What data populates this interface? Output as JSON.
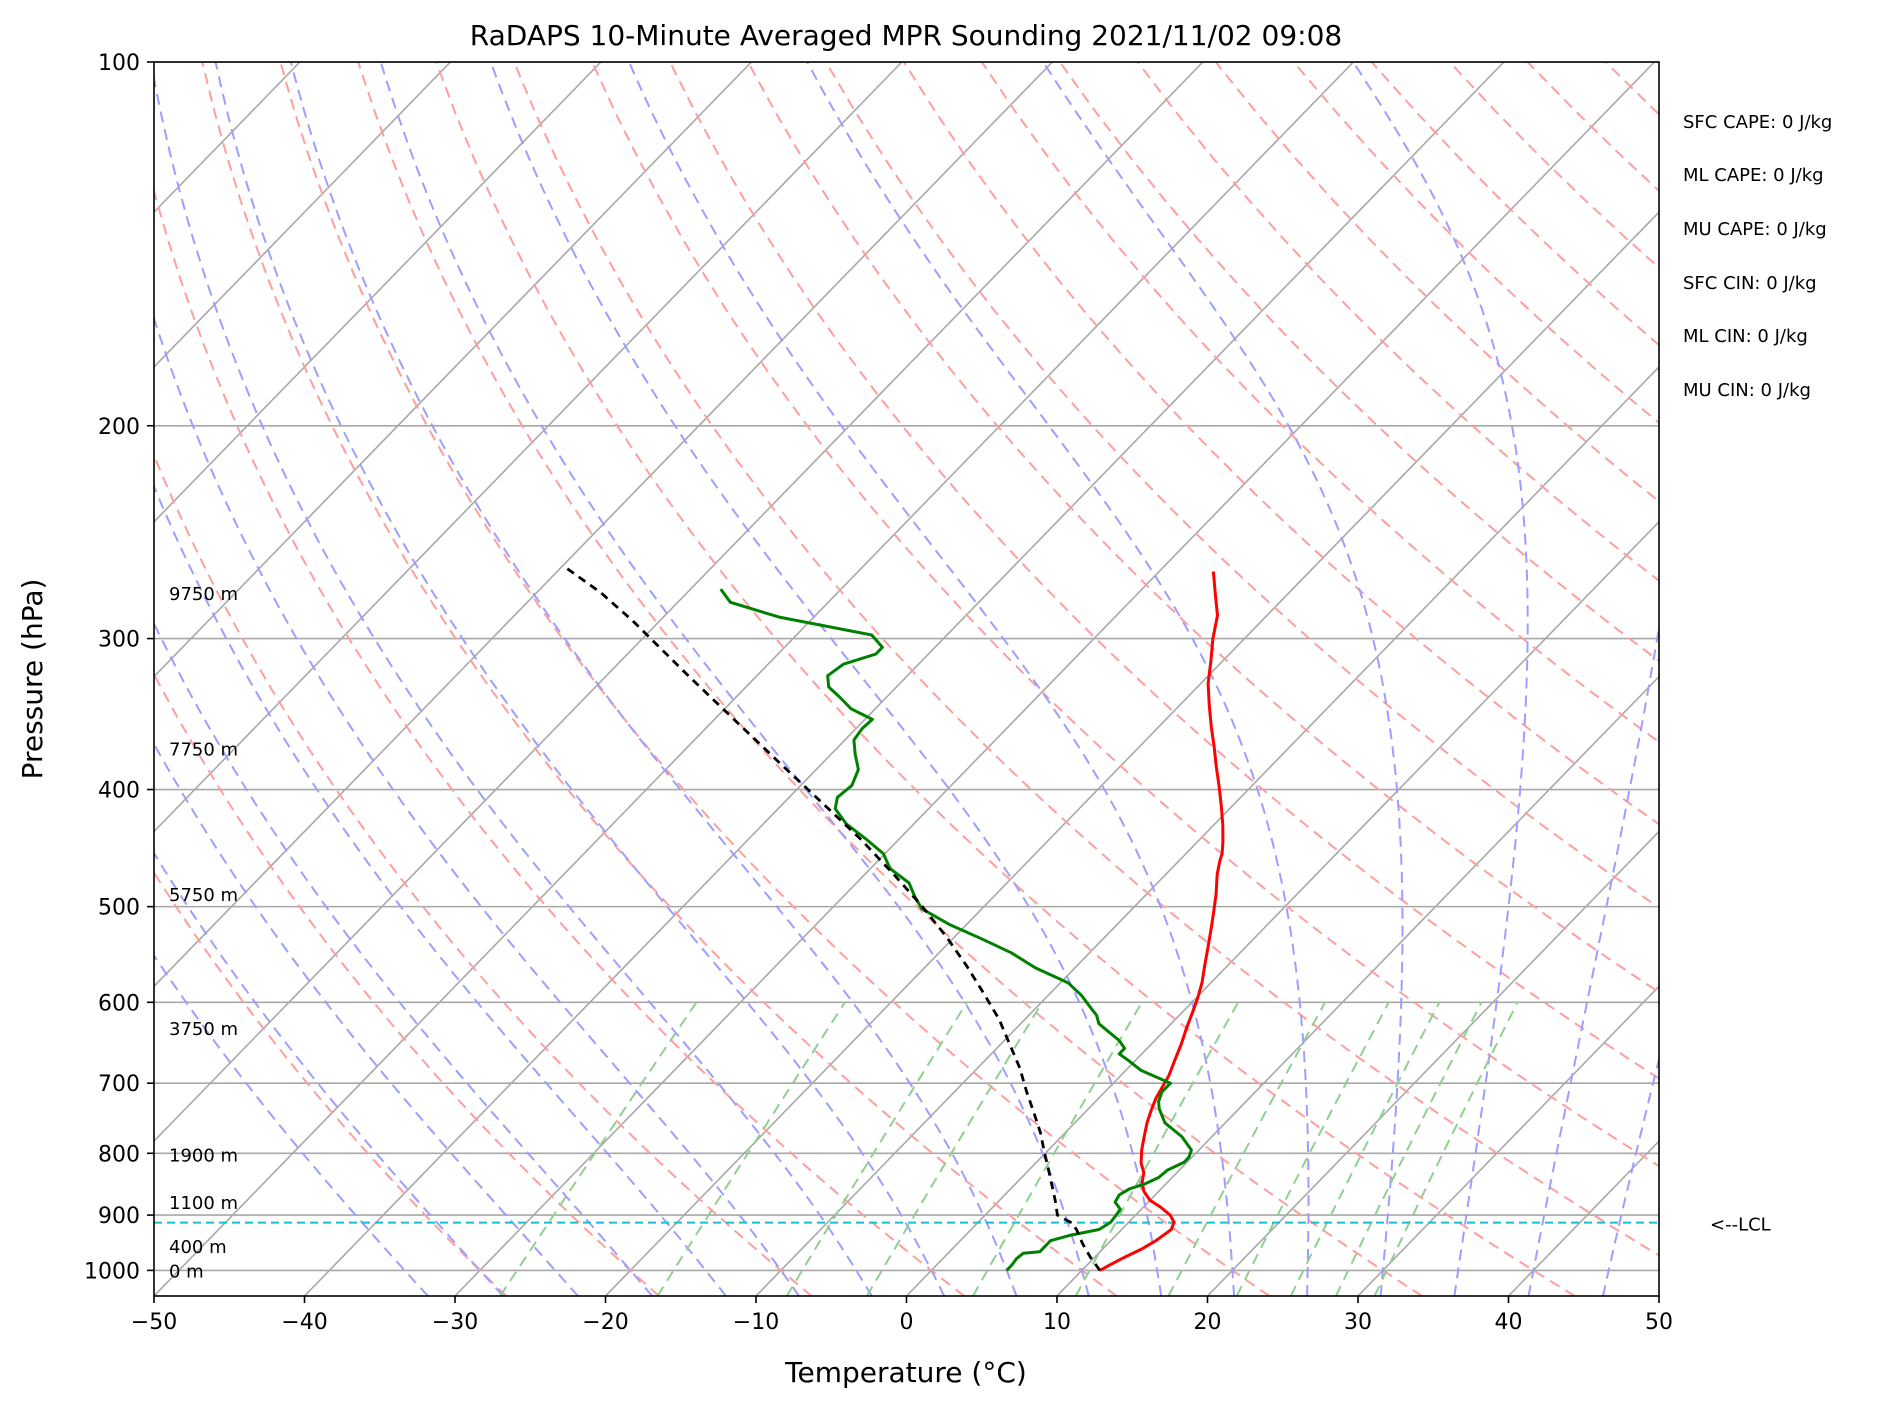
{
  "chart_data": {
    "type": "skew-t log-p",
    "title": "RaDAPS 10-Minute Averaged MPR Sounding 2021/11/02 09:08",
    "xlabel": "Temperature (°C)",
    "ylabel": "Pressure (hPa)",
    "xlim": [
      -50,
      50
    ],
    "ylim": [
      1050,
      100
    ],
    "x_ticks": [
      -50,
      -40,
      -30,
      -20,
      -10,
      0,
      10,
      20,
      30,
      40,
      50
    ],
    "x_tick_labels": [
      "−50",
      "−40",
      "−30",
      "−20",
      "−10",
      "0",
      "10",
      "20",
      "30",
      "40",
      "50"
    ],
    "y_ticks": [
      1000,
      900,
      800,
      700,
      600,
      500,
      400,
      300,
      200,
      100
    ],
    "y_tick_labels": [
      "1000",
      "900",
      "800",
      "700",
      "600",
      "500",
      "400",
      "300",
      "200",
      "100"
    ],
    "grid": true,
    "height_labels": [
      {
        "label": "0 m",
        "p": 1000
      },
      {
        "label": "400 m",
        "p": 955
      },
      {
        "label": "1100 m",
        "p": 878
      },
      {
        "label": "1900 m",
        "p": 802
      },
      {
        "label": "3750 m",
        "p": 630
      },
      {
        "label": "5750 m",
        "p": 488
      },
      {
        "label": "7750 m",
        "p": 370
      },
      {
        "label": "9750 m",
        "p": 275
      }
    ],
    "lcl": {
      "label": "<--LCL",
      "p": 913,
      "color": "#17becf"
    },
    "series": [
      {
        "role": "temperature",
        "color": "#ff0000",
        "points": [
          [
            11.2,
            1000
          ],
          [
            11.5,
            990
          ],
          [
            12.0,
            975
          ],
          [
            12.6,
            960
          ],
          [
            13.0,
            945
          ],
          [
            13.3,
            925
          ],
          [
            13.0,
            912
          ],
          [
            12.3,
            900
          ],
          [
            11.2,
            887
          ],
          [
            10.0,
            875
          ],
          [
            9.0,
            860
          ],
          [
            8.3,
            845
          ],
          [
            7.8,
            830
          ],
          [
            7.0,
            815
          ],
          [
            6.2,
            795
          ],
          [
            5.5,
            775
          ],
          [
            4.8,
            755
          ],
          [
            4.2,
            735
          ],
          [
            3.8,
            720
          ],
          [
            3.5,
            705
          ],
          [
            3.2,
            690
          ],
          [
            2.6,
            670
          ],
          [
            2.0,
            650
          ],
          [
            1.3,
            630
          ],
          [
            0.7,
            612
          ],
          [
            0.1,
            595
          ],
          [
            -0.6,
            578
          ],
          [
            -1.5,
            560
          ],
          [
            -2.4,
            542
          ],
          [
            -3.4,
            523
          ],
          [
            -4.4,
            505
          ],
          [
            -5.4,
            488
          ],
          [
            -6.6,
            470
          ],
          [
            -7.3,
            458
          ],
          [
            -7.6,
            452
          ],
          [
            -8.3,
            442
          ],
          [
            -9.4,
            428
          ],
          [
            -10.8,
            412
          ],
          [
            -12.2,
            397
          ],
          [
            -13.6,
            383
          ],
          [
            -15.0,
            369
          ],
          [
            -16.5,
            355
          ],
          [
            -18.0,
            341
          ],
          [
            -19.5,
            327
          ],
          [
            -20.8,
            313
          ],
          [
            -22.1,
            300
          ],
          [
            -23.3,
            287
          ],
          [
            -24.9,
            275
          ],
          [
            -26.4,
            264
          ]
        ]
      },
      {
        "role": "dewpoint",
        "color": "#008000",
        "points": [
          [
            5.0,
            1000
          ],
          [
            5.0,
            990
          ],
          [
            4.9,
            978
          ],
          [
            5.0,
            968
          ],
          [
            6.0,
            965
          ],
          [
            6.0,
            955
          ],
          [
            6.0,
            945
          ],
          [
            7.0,
            935
          ],
          [
            8.5,
            925
          ],
          [
            8.8,
            912
          ],
          [
            8.7,
            900
          ],
          [
            8.6,
            890
          ],
          [
            7.8,
            878
          ],
          [
            7.6,
            866
          ],
          [
            7.9,
            856
          ],
          [
            8.6,
            848
          ],
          [
            9.1,
            838
          ],
          [
            9.2,
            826
          ],
          [
            9.8,
            814
          ],
          [
            9.8,
            806
          ],
          [
            9.5,
            795
          ],
          [
            8.0,
            775
          ],
          [
            6.0,
            755
          ],
          [
            4.7,
            735
          ],
          [
            4.2,
            725
          ],
          [
            3.8,
            712
          ],
          [
            3.8,
            700
          ],
          [
            1.0,
            683
          ],
          [
            -0.5,
            670
          ],
          [
            -1.5,
            662
          ],
          [
            -1.5,
            655
          ],
          [
            -2.4,
            645
          ],
          [
            -3.6,
            635
          ],
          [
            -4.8,
            625
          ],
          [
            -5.5,
            615
          ],
          [
            -6.5,
            605
          ],
          [
            -7.8,
            592
          ],
          [
            -9.5,
            578
          ],
          [
            -12.6,
            562
          ],
          [
            -15.2,
            546
          ],
          [
            -18.0,
            532
          ],
          [
            -21.2,
            517
          ],
          [
            -24.0,
            502
          ],
          [
            -25.3,
            490
          ],
          [
            -26.5,
            478
          ],
          [
            -28.7,
            465
          ],
          [
            -30.1,
            452
          ],
          [
            -32.3,
            439
          ],
          [
            -34.5,
            427
          ],
          [
            -36.2,
            415
          ],
          [
            -36.8,
            406
          ],
          [
            -36.6,
            397
          ],
          [
            -37.2,
            385
          ],
          [
            -38.4,
            374
          ],
          [
            -39.4,
            364
          ],
          [
            -39.6,
            356
          ],
          [
            -39.5,
            350
          ],
          [
            -41.6,
            343
          ],
          [
            -43.0,
            336
          ],
          [
            -44.5,
            329
          ],
          [
            -45.3,
            322
          ],
          [
            -45.0,
            315
          ],
          [
            -43.5,
            309
          ],
          [
            -43.5,
            305
          ],
          [
            -45.0,
            298
          ],
          [
            -52.3,
            288
          ],
          [
            -56.5,
            280
          ],
          [
            -58.0,
            273
          ]
        ]
      },
      {
        "role": "parcel",
        "color": "#000000",
        "dashed": true,
        "points": [
          [
            11.2,
            1000
          ],
          [
            9.7,
            975
          ],
          [
            8.3,
            950
          ],
          [
            7.0,
            925
          ],
          [
            6.2,
            913
          ],
          [
            4.8,
            900
          ],
          [
            3.7,
            875
          ],
          [
            2.5,
            850
          ],
          [
            1.0,
            820
          ],
          [
            -0.3,
            795
          ],
          [
            -1.6,
            770
          ],
          [
            -3.4,
            740
          ],
          [
            -5.3,
            710
          ],
          [
            -7.2,
            680
          ],
          [
            -9.4,
            650
          ],
          [
            -11.7,
            620
          ],
          [
            -14.4,
            590
          ],
          [
            -17.3,
            560
          ],
          [
            -20.5,
            530
          ],
          [
            -24.1,
            500
          ],
          [
            -28.1,
            470
          ],
          [
            -32.5,
            440
          ],
          [
            -37.5,
            410
          ],
          [
            -42.9,
            380
          ],
          [
            -48.7,
            350
          ],
          [
            -55.0,
            320
          ],
          [
            -61.8,
            290
          ],
          [
            -65.7,
            275
          ],
          [
            -69.7,
            262
          ]
        ]
      }
    ]
  },
  "indices": [
    "SFC CAPE: 0 J/kg",
    "ML CAPE: 0 J/kg",
    "MU CAPE: 0 J/kg",
    "SFC CIN: 0 J/kg",
    "ML CIN: 0 J/kg",
    "MU CIN: 0 J/kg"
  ],
  "colors": {
    "dry_adiabat": "#ff9e9e",
    "moist_adiabat": "#9e9eff",
    "mixing_ratio": "#8fd08f",
    "isotherm": "#a8a8a8",
    "isobar": "#a8a8a8"
  }
}
